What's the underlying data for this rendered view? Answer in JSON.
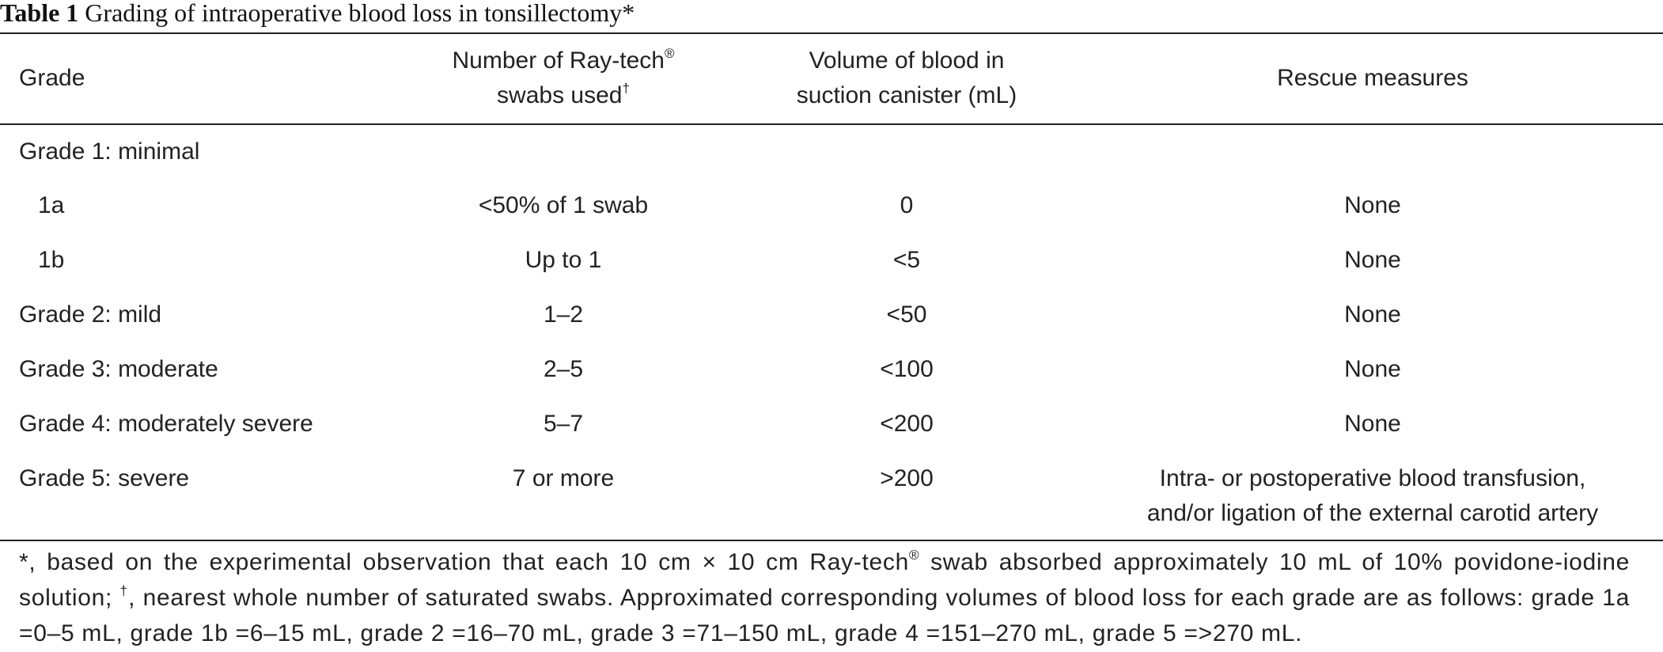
{
  "caption": {
    "label": "Table 1",
    "title": "Grading of intraoperative blood loss in tonsillectomy*"
  },
  "headers": {
    "grade": "Grade",
    "swabs_line1": "Number of Ray-tech",
    "swabs_reg": "®",
    "swabs_line2": "swabs used",
    "swabs_dagger": "†",
    "volume_line1": "Volume of blood in",
    "volume_line2": "suction canister (mL)",
    "rescue": "Rescue measures"
  },
  "rows": [
    {
      "grade": "Grade 1: minimal",
      "swabs": "",
      "volume": "",
      "rescue": ""
    },
    {
      "grade": "1a",
      "swabs": "<50% of 1 swab",
      "volume": "0",
      "rescue": "None"
    },
    {
      "grade": "1b",
      "swabs": "Up to 1",
      "volume": "<5",
      "rescue": "None"
    },
    {
      "grade": "Grade 2: mild",
      "swabs": "1–2",
      "volume": "<50",
      "rescue": "None"
    },
    {
      "grade": "Grade 3: moderate",
      "swabs": "2–5",
      "volume": "<100",
      "rescue": "None"
    },
    {
      "grade": "Grade 4: moderately severe",
      "swabs": "5–7",
      "volume": "<200",
      "rescue": "None"
    },
    {
      "grade": "Grade 5: severe",
      "swabs": "7 or more",
      "volume": ">200",
      "rescue_line1": "Intra- or postoperative blood transfusion,",
      "rescue_line2": "and/or ligation of the external carotid artery"
    }
  ],
  "footnote": {
    "part1": "*, based on the experimental observation that each 10 cm × 10 cm Ray-tech",
    "reg": "®",
    "part2": " swab absorbed approximately 10 mL of 10% povidone-iodine solution; ",
    "dagger": "†",
    "part3": ", nearest whole number of saturated swabs. Approximated corresponding volumes of blood loss for each grade are as follows: grade 1a =0–5 mL, grade 1b =6–15 mL, grade 2 =16–70 mL, grade 3 =71–150 mL, grade 4 =151–270 mL, grade 5 =>270 mL."
  }
}
